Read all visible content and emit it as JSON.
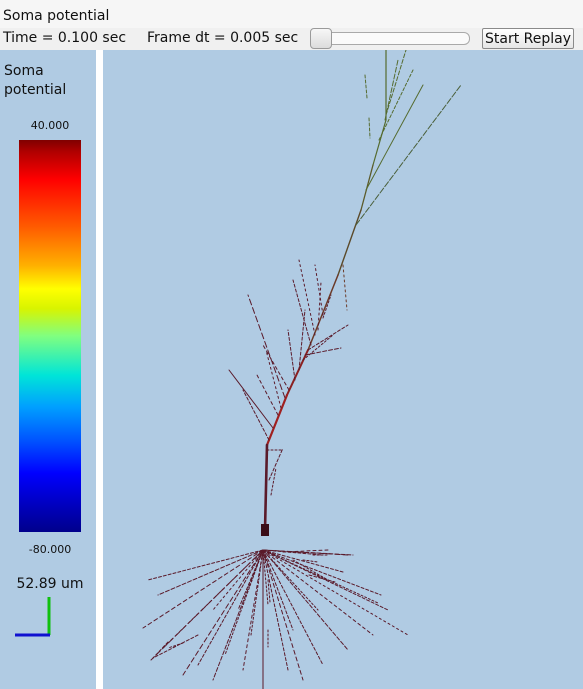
{
  "window": {
    "title": "Soma potential"
  },
  "controls": {
    "time_label": "Time = 0.100 sec",
    "dt_label": "Frame dt = 0.005 sec",
    "replay_label": "Start Replay",
    "slider_fraction": 0.0
  },
  "legend": {
    "title_line1": "Soma",
    "title_line2": "potential",
    "max": "40.000",
    "min": "-80.000",
    "scale": "52.89 um",
    "colormap": [
      "#800000",
      "#ff0000",
      "#ffb000",
      "#ffff00",
      "#80ff80",
      "#00e5d8",
      "#0050ff",
      "#00008b"
    ]
  },
  "colors": {
    "background": "#b0cbe3",
    "dendrite": "#5a1a2a",
    "apical_tuft": "#556b2f",
    "soma": "#3a0d18",
    "axis_x": "#1010d0",
    "axis_y": "#10c010"
  }
}
